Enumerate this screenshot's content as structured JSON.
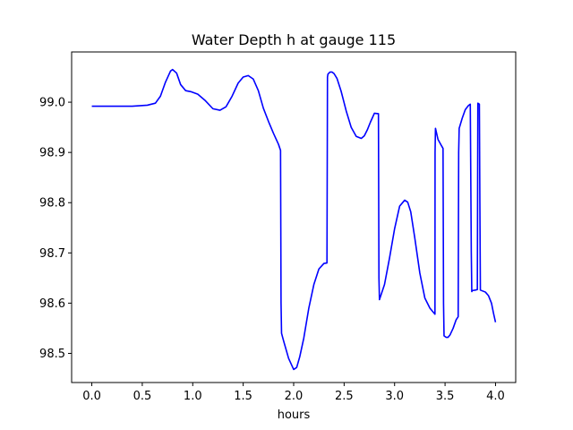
{
  "chart_data": {
    "type": "line",
    "title": "Water Depth h at gauge 115",
    "xlabel": "hours",
    "ylabel": "",
    "xlim": [
      -0.2,
      4.2
    ],
    "ylim": [
      98.442,
      99.1
    ],
    "grid": false,
    "xticks": [
      0.0,
      0.5,
      1.0,
      1.5,
      2.0,
      2.5,
      3.0,
      3.5,
      4.0
    ],
    "xtick_labels": [
      "0.0",
      "0.5",
      "1.0",
      "1.5",
      "2.0",
      "2.5",
      "3.0",
      "3.5",
      "4.0"
    ],
    "yticks": [
      98.5,
      98.6,
      98.7,
      98.8,
      98.9,
      99.0
    ],
    "ytick_labels": [
      "98.5",
      "98.6",
      "98.7",
      "98.8",
      "98.9",
      "99.0"
    ],
    "series": [
      {
        "color": "#0000ff",
        "x": [
          0.0,
          0.2,
          0.4,
          0.55,
          0.63,
          0.68,
          0.73,
          0.78,
          0.8,
          0.84,
          0.88,
          0.93,
          0.98,
          1.05,
          1.12,
          1.2,
          1.27,
          1.33,
          1.39,
          1.45,
          1.5,
          1.55,
          1.6,
          1.65,
          1.7,
          1.75,
          1.8,
          1.85,
          1.87,
          1.875,
          1.88,
          1.9,
          1.95,
          2.0,
          2.03,
          2.06,
          2.1,
          2.15,
          2.2,
          2.25,
          2.3,
          2.33,
          2.335,
          2.34,
          2.36,
          2.38,
          2.4,
          2.43,
          2.47,
          2.52,
          2.57,
          2.62,
          2.67,
          2.7,
          2.73,
          2.76,
          2.8,
          2.84,
          2.845,
          2.85,
          2.9,
          2.95,
          3.0,
          3.05,
          3.1,
          3.13,
          3.16,
          3.2,
          3.25,
          3.3,
          3.35,
          3.4,
          3.401,
          3.405,
          3.43,
          3.46,
          3.48,
          3.485,
          3.49,
          3.51,
          3.53,
          3.55,
          3.58,
          3.61,
          3.63,
          3.635,
          3.64,
          3.67,
          3.7,
          3.73,
          3.75,
          3.76,
          3.765,
          3.77,
          3.8,
          3.82,
          3.825,
          3.84,
          3.845,
          3.85,
          3.9,
          3.93,
          3.96,
          3.98,
          4.0
        ],
        "y": [
          98.992,
          98.992,
          98.992,
          98.994,
          98.998,
          99.012,
          99.04,
          99.062,
          99.065,
          99.058,
          99.035,
          99.023,
          99.021,
          99.016,
          99.004,
          98.987,
          98.984,
          98.991,
          99.012,
          99.038,
          99.05,
          99.053,
          99.046,
          99.023,
          98.988,
          98.962,
          98.938,
          98.916,
          98.904,
          98.6,
          98.54,
          98.525,
          98.49,
          98.468,
          98.472,
          98.493,
          98.53,
          98.59,
          98.637,
          98.668,
          98.679,
          98.68,
          99.05,
          99.056,
          99.06,
          99.06,
          99.057,
          99.047,
          99.022,
          98.983,
          98.95,
          98.932,
          98.928,
          98.933,
          98.945,
          98.96,
          98.978,
          98.977,
          98.65,
          98.607,
          98.637,
          98.69,
          98.748,
          98.793,
          98.805,
          98.801,
          98.782,
          98.73,
          98.66,
          98.61,
          98.59,
          98.578,
          98.9,
          98.948,
          98.926,
          98.915,
          98.908,
          98.6,
          98.535,
          98.532,
          98.532,
          98.537,
          98.55,
          98.567,
          98.573,
          98.9,
          98.948,
          98.968,
          98.985,
          98.993,
          98.996,
          98.7,
          98.623,
          98.625,
          98.626,
          98.627,
          98.998,
          98.996,
          98.8,
          98.626,
          98.622,
          98.615,
          98.6,
          98.58,
          98.562
        ]
      }
    ]
  }
}
